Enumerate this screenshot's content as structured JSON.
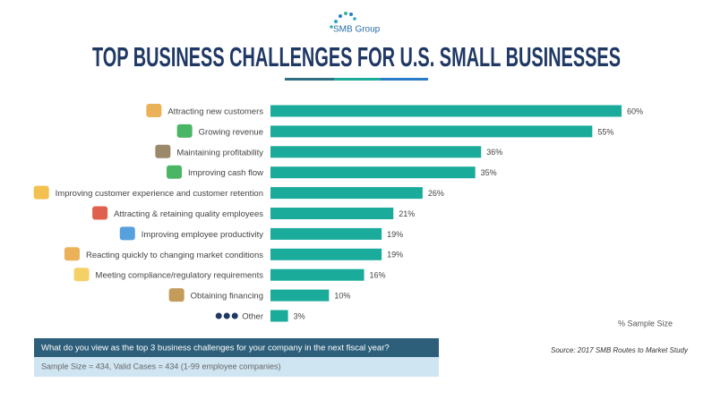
{
  "chart_data": {
    "type": "bar",
    "orientation": "horizontal",
    "logo_text": "SMB Group",
    "title": "TOP BUSINESS CHALLENGES FOR U.S. SMALL BUSINESSES",
    "categories": [
      "Attracting new customers",
      "Growing revenue",
      "Maintaining profitability",
      "Improving cash flow",
      "Improving customer experience and customer retention",
      "Attracting & retaining quality employees",
      "Improving employee productivity",
      "Reacting quickly to changing market conditions",
      "Meeting compliance/regulatory requirements",
      "Obtaining financing",
      "Other"
    ],
    "values": [
      60,
      55,
      36,
      35,
      26,
      21,
      19,
      19,
      16,
      10,
      3
    ],
    "value_labels": [
      "60%",
      "55%",
      "36%",
      "35%",
      "26%",
      "21%",
      "19%",
      "19%",
      "16%",
      "10%",
      "3%"
    ],
    "color": "#1aab9b",
    "value_axis_label": "% Sample Size",
    "question": "What do you view as the top 3 business challenges for your company in the next fiscal year?",
    "sample_note": "Sample Size = 434, Valid Cases = 434 (1-99 employee companies)",
    "source": "Source: 2017 SMB Routes to Market Study"
  }
}
